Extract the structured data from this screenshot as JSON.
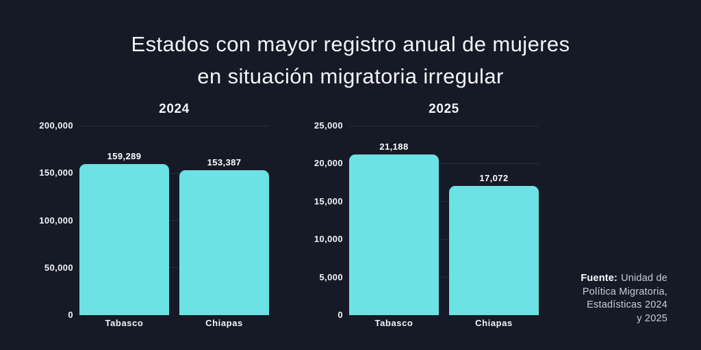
{
  "title": {
    "line1": "Estados con mayor registro anual de mujeres",
    "line2": "en situación migratoria irregular"
  },
  "source": {
    "label": "Fuente:",
    "line1": "Unidad de",
    "line2": "Política Migratoria,",
    "line3": "Estadísticas 2024",
    "line4": "y 2025"
  },
  "colors": {
    "background": "#161a27",
    "bar": "#6ce2e5",
    "grid": "#272c3a",
    "text_primary": "#f2f4f7",
    "text_secondary": "#c9ccd6"
  },
  "chart_data": [
    {
      "type": "bar",
      "title": "2024",
      "categories": [
        "Tabasco",
        "Chiapas"
      ],
      "values": [
        159289,
        153387
      ],
      "value_labels": [
        "159,289",
        "153,387"
      ],
      "xlabel": "",
      "ylabel": "",
      "ylim": [
        0,
        200000
      ],
      "yticks": [
        0,
        50000,
        100000,
        150000,
        200000
      ],
      "ytick_labels": [
        "0",
        "50,000",
        "100,000",
        "150,000",
        "200,000"
      ],
      "grid": true,
      "legend": "none"
    },
    {
      "type": "bar",
      "title": "2025",
      "categories": [
        "Tabasco",
        "Chiapas"
      ],
      "values": [
        21188,
        17072
      ],
      "value_labels": [
        "21,188",
        "17,072"
      ],
      "xlabel": "",
      "ylabel": "",
      "ylim": [
        0,
        25000
      ],
      "yticks": [
        0,
        5000,
        10000,
        15000,
        20000,
        25000
      ],
      "ytick_labels": [
        "0",
        "5,000",
        "10,000",
        "15,000",
        "20,000",
        "25,000"
      ],
      "grid": true,
      "legend": "none"
    }
  ]
}
